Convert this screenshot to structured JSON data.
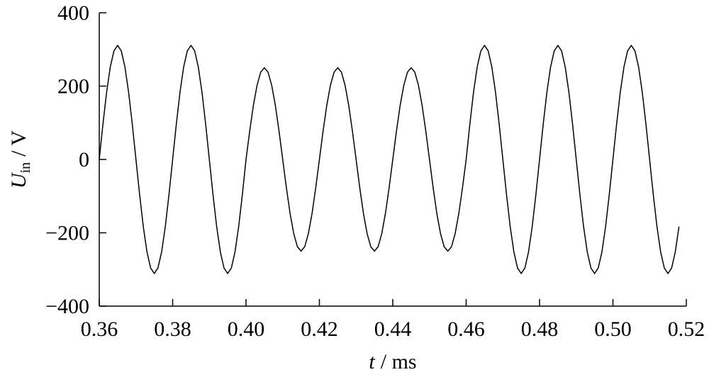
{
  "chart_data": {
    "type": "line",
    "ylabel_symbol": "U",
    "ylabel_subscript": "in",
    "ylabel_unit": "/ V",
    "xlabel_symbol": "t",
    "xlabel_unit": "/ ms",
    "xlim": [
      0.36,
      0.52
    ],
    "xticks": [
      0.36,
      0.38,
      {
        "value": 0.4,
        "label": "0.40"
      },
      0.42,
      0.44,
      0.46,
      0.48,
      {
        "value": 0.5,
        "label": "0.50"
      },
      0.52
    ],
    "ylim": [
      -400,
      400
    ],
    "yticks": [
      {
        "value": -400,
        "label": "−400"
      },
      {
        "value": -200,
        "label": "−200"
      },
      0,
      200,
      400
    ],
    "grid": false,
    "series": [
      {
        "color": "#000000",
        "x": [
          0.36,
          0.361,
          0.362,
          0.363,
          0.364,
          0.365,
          0.366,
          0.367,
          0.368,
          0.369,
          0.37,
          0.371,
          0.372,
          0.373,
          0.374,
          0.375,
          0.376,
          0.377,
          0.378,
          0.379,
          0.38,
          0.381,
          0.382,
          0.383,
          0.384,
          0.385,
          0.386,
          0.387,
          0.388,
          0.389,
          0.39,
          0.391,
          0.392,
          0.393,
          0.394,
          0.395,
          0.396,
          0.397,
          0.398,
          0.399,
          0.4,
          0.401,
          0.402,
          0.403,
          0.404,
          0.405,
          0.406,
          0.407,
          0.408,
          0.409,
          0.41,
          0.411,
          0.412,
          0.413,
          0.414,
          0.415,
          0.416,
          0.417,
          0.418,
          0.419,
          0.42,
          0.421,
          0.422,
          0.423,
          0.424,
          0.425,
          0.426,
          0.427,
          0.428,
          0.429,
          0.43,
          0.431,
          0.432,
          0.433,
          0.434,
          0.435,
          0.436,
          0.437,
          0.438,
          0.439,
          0.44,
          0.441,
          0.442,
          0.443,
          0.444,
          0.445,
          0.446,
          0.447,
          0.448,
          0.449,
          0.45,
          0.451,
          0.452,
          0.453,
          0.454,
          0.455,
          0.456,
          0.457,
          0.458,
          0.459,
          0.46,
          0.461,
          0.462,
          0.463,
          0.464,
          0.465,
          0.466,
          0.467,
          0.468,
          0.469,
          0.47,
          0.471,
          0.472,
          0.473,
          0.474,
          0.475,
          0.476,
          0.477,
          0.478,
          0.479,
          0.48,
          0.481,
          0.482,
          0.483,
          0.484,
          0.485,
          0.486,
          0.487,
          0.488,
          0.489,
          0.49,
          0.491,
          0.492,
          0.493,
          0.494,
          0.495,
          0.496,
          0.497,
          0.498,
          0.499,
          0.5,
          0.501,
          0.502,
          0.503,
          0.504,
          0.505,
          0.506,
          0.507,
          0.508,
          0.509,
          0.51,
          0.511,
          0.512,
          0.513,
          0.514,
          0.515,
          0.516,
          0.517,
          0.518
        ],
        "values": [
          0,
          96,
          183,
          252,
          296,
          311,
          296,
          252,
          183,
          96,
          0,
          -96,
          -183,
          -252,
          -296,
          -311,
          -296,
          -252,
          -183,
          -96,
          0,
          96,
          183,
          252,
          296,
          311,
          296,
          252,
          183,
          96,
          0,
          -96,
          -183,
          -252,
          -296,
          -311,
          -296,
          -252,
          -183,
          -96,
          0,
          77,
          147,
          202,
          238,
          250,
          238,
          202,
          147,
          77,
          0,
          -77,
          -147,
          -202,
          -238,
          -250,
          -238,
          -202,
          -147,
          -77,
          0,
          77,
          147,
          202,
          238,
          250,
          238,
          202,
          147,
          77,
          0,
          -77,
          -147,
          -202,
          -238,
          -250,
          -238,
          -202,
          -147,
          -77,
          0,
          77,
          147,
          202,
          238,
          250,
          238,
          202,
          147,
          77,
          0,
          -77,
          -147,
          -202,
          -238,
          -250,
          -238,
          -202,
          -147,
          -77,
          0,
          96,
          183,
          252,
          296,
          311,
          296,
          252,
          183,
          96,
          0,
          -96,
          -183,
          -252,
          -296,
          -311,
          -296,
          -252,
          -183,
          -96,
          0,
          96,
          183,
          252,
          296,
          311,
          296,
          252,
          183,
          96,
          0,
          -96,
          -183,
          -252,
          -296,
          -311,
          -296,
          -252,
          -183,
          -96,
          0,
          96,
          183,
          252,
          296,
          311,
          296,
          252,
          183,
          96,
          0,
          -96,
          -183,
          -252,
          -296,
          -311,
          -296,
          -252,
          -183
        ]
      }
    ]
  }
}
